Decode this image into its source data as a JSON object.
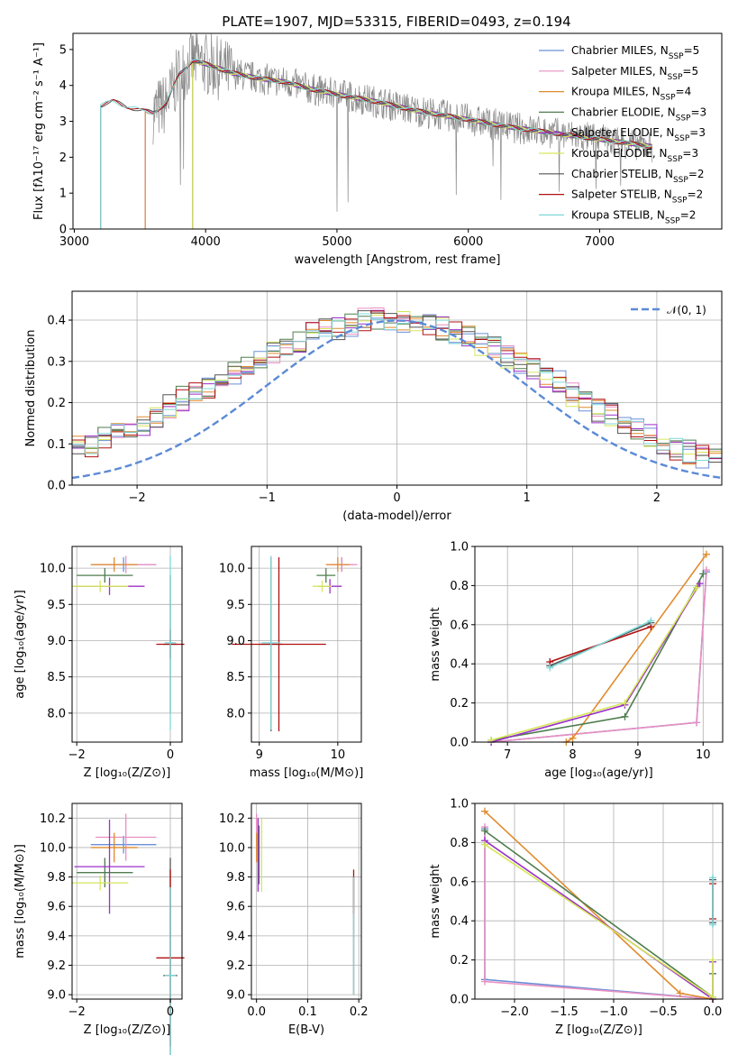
{
  "figure_title": "PLATE=1907, MJD=53315, FIBERID=0493, z=0.194",
  "palette": {
    "Chabrier MILES": "#6a8fd8",
    "Salpeter MILES": "#e98fc2",
    "Kroupa MILES": "#e08a2c",
    "Chabrier ELODIE": "#4f7d4f",
    "Salpeter ELODIE": "#9b30c8",
    "Kroupa ELODIE": "#d6e65a",
    "Chabrier STELIB": "#555555",
    "Salpeter STELIB": "#b01010",
    "Kroupa STELIB": "#7fd8d8",
    "data": "#888888",
    "normal": "#5b8ad6"
  },
  "chart_data": [
    {
      "id": "spectrum",
      "type": "line",
      "title": "PLATE=1907, MJD=53315, FIBERID=0493, z=0.194",
      "xlabel": "wavelength [Angstrom, rest frame]",
      "ylabel": "Flux [fλ10⁻¹⁷ erg cm⁻² s⁻¹ A⁻¹]",
      "xlim": [
        2990,
        7930
      ],
      "ylim": [
        0,
        5.45
      ],
      "xticks": [
        3000,
        4000,
        5000,
        6000,
        7000
      ],
      "yticks": [
        0,
        1,
        2,
        3,
        4,
        5
      ],
      "legend_loc": "upper right",
      "legend": [
        "Chabrier MILES, N_SSP=5",
        "Salpeter MILES, N_SSP=5",
        "Kroupa MILES, N_SSP=4",
        "Chabrier ELODIE, N_SSP=3",
        "Salpeter ELODIE, N_SSP=3",
        "Kroupa ELODIE, N_SSP=3",
        "Chabrier STELIB, N_SSP=2",
        "Salpeter STELIB, N_SSP=2",
        "Kroupa STELIB, N_SSP=2"
      ],
      "model_continuum": {
        "x": [
          3200,
          3300,
          3500,
          3600,
          3700,
          3800,
          3900,
          4000,
          4200,
          4400,
          4600,
          4800,
          5000,
          5300,
          5600,
          6000,
          6300,
          6600,
          6800,
          7000,
          7200,
          7400
        ],
        "y": [
          3.45,
          3.55,
          3.3,
          3.25,
          3.5,
          4.3,
          4.7,
          4.6,
          4.35,
          4.2,
          4.1,
          3.9,
          3.75,
          3.55,
          3.3,
          3.05,
          2.85,
          2.7,
          2.6,
          2.5,
          2.4,
          2.3
        ]
      },
      "model_starts": {
        "Chabrier MILES": 3540,
        "Salpeter MILES": 3540,
        "Kroupa MILES": 3540,
        "Chabrier ELODIE": 3900,
        "Salpeter ELODIE": 3900,
        "Kroupa ELODIE": 3900,
        "Chabrier STELIB": 3200,
        "Salpeter STELIB": 3200,
        "Kroupa STELIB": 3200
      },
      "data_range": [
        3600,
        7400
      ]
    },
    {
      "id": "residuals",
      "type": "step",
      "xlabel": "(data-model)/error",
      "ylabel": "Normed distribution",
      "xlim": [
        -2.5,
        2.5
      ],
      "ylim": [
        0,
        0.47
      ],
      "xticks": [
        -2,
        -1,
        0,
        1,
        2
      ],
      "yticks": [
        0.0,
        0.1,
        0.2,
        0.3,
        0.4
      ],
      "bin_width": 0.1,
      "legend": "𝒩(0, 1)",
      "legend_loc": "upper right",
      "base_histogram": [
        0.04,
        0.03,
        0.05,
        0.06,
        0.08,
        0.1,
        0.09,
        0.11,
        0.12,
        0.13,
        0.15,
        0.17,
        0.19,
        0.21,
        0.22,
        0.24,
        0.25,
        0.27,
        0.29,
        0.31,
        0.32,
        0.34,
        0.35,
        0.37,
        0.38,
        0.38,
        0.39,
        0.4,
        0.4,
        0.39,
        0.4,
        0.4,
        0.39,
        0.38,
        0.37,
        0.36,
        0.34,
        0.33,
        0.31,
        0.3,
        0.28,
        0.26,
        0.25,
        0.22,
        0.2,
        0.18,
        0.17,
        0.15,
        0.13,
        0.12,
        0.1,
        0.09,
        0.08,
        0.07,
        0.06,
        0.06,
        0.05,
        0.05,
        0.04,
        0.04
      ]
    },
    {
      "id": "age_vs_Z",
      "type": "errorbar",
      "xlabel": "Z [log₁₀(Z/Z⊙)]",
      "ylabel": "age  [log₁₀(age/yr)]",
      "xlim": [
        -2.1,
        0.25
      ],
      "ylim": [
        7.6,
        10.3
      ],
      "xticks": [
        -2,
        0
      ],
      "yticks": [
        8.0,
        8.5,
        9.0,
        9.5,
        10.0
      ],
      "points": [
        {
          "m": "Chabrier MILES",
          "x": -1.0,
          "y": 10.05,
          "xerr": 0.7,
          "yerr": 0.1
        },
        {
          "m": "Salpeter MILES",
          "x": -0.95,
          "y": 10.05,
          "xerr": 0.65,
          "yerr": 0.12
        },
        {
          "m": "Kroupa MILES",
          "x": -1.2,
          "y": 10.05,
          "xerr": 0.5,
          "yerr": 0.1
        },
        {
          "m": "Chabrier ELODIE",
          "x": -1.4,
          "y": 9.9,
          "xerr": 0.6,
          "yerr": 0.1
        },
        {
          "m": "Salpeter ELODIE",
          "x": -1.3,
          "y": 9.75,
          "xerr": 0.75,
          "yerr": 0.12
        },
        {
          "m": "Kroupa ELODIE",
          "x": -1.5,
          "y": 9.75,
          "xerr": 0.6,
          "yerr": 0.08
        },
        {
          "m": "Chabrier STELIB",
          "x": 0.0,
          "y": 8.95,
          "xerr": 0.15,
          "yerr": 0.95
        },
        {
          "m": "Salpeter STELIB",
          "x": 0.0,
          "y": 8.95,
          "xerr": 0.3,
          "yerr": 0.2
        },
        {
          "m": "Kroupa STELIB",
          "x": 0.0,
          "y": 8.97,
          "xerr": 0.12,
          "yerr": 1.2
        }
      ]
    },
    {
      "id": "age_vs_mass",
      "type": "errorbar",
      "xlabel": "mass [log₁₀(M/M⊙)]",
      "ylabel": "",
      "xlim": [
        8.9,
        10.3
      ],
      "ylim": [
        7.6,
        10.3
      ],
      "xticks": [
        9,
        10
      ],
      "yticks": [
        8.0,
        8.5,
        9.0,
        9.5,
        10.0
      ],
      "points": [
        {
          "m": "Chabrier MILES",
          "x": 10.05,
          "y": 10.05,
          "xerr": 0.15,
          "yerr": 0.1
        },
        {
          "m": "Salpeter MILES",
          "x": 10.05,
          "y": 10.05,
          "xerr": 0.2,
          "yerr": 0.1
        },
        {
          "m": "Kroupa MILES",
          "x": 10.0,
          "y": 10.05,
          "xerr": 0.15,
          "yerr": 0.1
        },
        {
          "m": "Chabrier ELODIE",
          "x": 9.85,
          "y": 9.9,
          "xerr": 0.12,
          "yerr": 0.1
        },
        {
          "m": "Salpeter ELODIE",
          "x": 9.9,
          "y": 9.75,
          "xerr": 0.15,
          "yerr": 0.1
        },
        {
          "m": "Kroupa ELODIE",
          "x": 9.8,
          "y": 9.75,
          "xerr": 0.12,
          "yerr": 0.08
        },
        {
          "m": "Chabrier STELIB",
          "x": 9.15,
          "y": 8.95,
          "xerr": 0.15,
          "yerr": 1.2
        },
        {
          "m": "Salpeter STELIB",
          "x": 9.25,
          "y": 8.95,
          "xerr": 0.6,
          "yerr": 1.2
        },
        {
          "m": "Kroupa STELIB",
          "x": 9.15,
          "y": 8.97,
          "xerr": 0.12,
          "yerr": 1.2
        }
      ]
    },
    {
      "id": "weight_vs_age",
      "type": "line",
      "xlabel": "age  [log₁₀(age/yr)]",
      "ylabel": "mass weight",
      "xlim": [
        6.5,
        10.3
      ],
      "ylim": [
        0,
        1.0
      ],
      "xticks": [
        7,
        8,
        9,
        10
      ],
      "yticks": [
        0.0,
        0.2,
        0.4,
        0.6,
        0.8,
        1.0
      ],
      "series": [
        {
          "m": "Chabrier MILES",
          "x": [
            10.05,
            9.9,
            6.75
          ],
          "y": [
            0.87,
            0.1,
            0.0
          ]
        },
        {
          "m": "Salpeter MILES",
          "x": [
            10.05,
            9.9,
            6.75
          ],
          "y": [
            0.88,
            0.1,
            0.0
          ]
        },
        {
          "m": "Kroupa MILES",
          "x": [
            10.05,
            8.0,
            7.9
          ],
          "y": [
            0.96,
            0.02,
            0.0
          ]
        },
        {
          "m": "Chabrier ELODIE",
          "x": [
            10.0,
            8.8,
            6.75
          ],
          "y": [
            0.86,
            0.13,
            0.01
          ]
        },
        {
          "m": "Salpeter ELODIE",
          "x": [
            9.95,
            8.8,
            6.75
          ],
          "y": [
            0.81,
            0.19,
            0.0
          ]
        },
        {
          "m": "Kroupa ELODIE",
          "x": [
            9.9,
            8.8,
            6.75
          ],
          "y": [
            0.79,
            0.2,
            0.01
          ]
        },
        {
          "m": "Chabrier STELIB",
          "x": [
            9.2,
            7.65
          ],
          "y": [
            0.61,
            0.39
          ]
        },
        {
          "m": "Salpeter STELIB",
          "x": [
            9.2,
            7.65
          ],
          "y": [
            0.59,
            0.41
          ]
        },
        {
          "m": "Kroupa STELIB",
          "x": [
            9.2,
            7.65
          ],
          "y": [
            0.62,
            0.38
          ]
        }
      ]
    },
    {
      "id": "mass_vs_Z",
      "type": "errorbar",
      "xlabel": "Z [log₁₀(Z/Z⊙)]",
      "ylabel": "mass [log₁₀(M/M⊙)]",
      "xlim": [
        -2.1,
        0.25
      ],
      "ylim": [
        8.97,
        10.3
      ],
      "xticks": [
        -2,
        0
      ],
      "yticks": [
        9.0,
        9.2,
        9.4,
        9.6,
        9.8,
        10.0,
        10.2
      ],
      "points": [
        {
          "m": "Chabrier MILES",
          "x": -1.0,
          "y": 10.02,
          "xerr": 0.7,
          "yerr": 0.06
        },
        {
          "m": "Salpeter MILES",
          "x": -0.95,
          "y": 10.07,
          "xerr": 0.65,
          "yerr": 0.16
        },
        {
          "m": "Kroupa MILES",
          "x": -1.2,
          "y": 10.0,
          "xerr": 0.5,
          "yerr": 0.1
        },
        {
          "m": "Chabrier ELODIE",
          "x": -1.4,
          "y": 9.83,
          "xerr": 0.6,
          "yerr": 0.1
        },
        {
          "m": "Salpeter ELODIE",
          "x": -1.3,
          "y": 9.87,
          "xerr": 0.75,
          "yerr": 0.32
        },
        {
          "m": "Kroupa ELODIE",
          "x": -1.5,
          "y": 9.76,
          "xerr": 0.6,
          "yerr": 0.05
        },
        {
          "m": "Chabrier STELIB",
          "x": 0.0,
          "y": 9.13,
          "xerr": 0.15,
          "yerr": 0.8
        },
        {
          "m": "Salpeter STELIB",
          "x": 0.0,
          "y": 9.25,
          "xerr": 0.3,
          "yerr": 0.6
        },
        {
          "m": "Kroupa STELIB",
          "x": 0.0,
          "y": 9.13,
          "xerr": 0.12,
          "yerr": 0.6
        }
      ]
    },
    {
      "id": "mass_vs_ebv",
      "type": "errorbar",
      "xlabel": "E(B-V)",
      "ylabel": "",
      "xlim": [
        -0.01,
        0.205
      ],
      "ylim": [
        8.97,
        10.3
      ],
      "xticks": [
        0.0,
        0.1,
        0.2
      ],
      "yticks": [
        9.0,
        9.2,
        9.4,
        9.6,
        9.8,
        10.0,
        10.2
      ],
      "points": [
        {
          "m": "Chabrier MILES",
          "x": 0.0,
          "y": 10.02,
          "xerr": 0.0,
          "yerr": 0.06
        },
        {
          "m": "Salpeter MILES",
          "x": 0.0,
          "y": 10.07,
          "xerr": 0.0,
          "yerr": 0.16
        },
        {
          "m": "Kroupa MILES",
          "x": 0.0,
          "y": 10.0,
          "xerr": 0.0,
          "yerr": 0.1
        },
        {
          "m": "Chabrier ELODIE",
          "x": 0.005,
          "y": 9.95,
          "xerr": 0.0,
          "yerr": 0.2
        },
        {
          "m": "Salpeter ELODIE",
          "x": 0.003,
          "y": 9.95,
          "xerr": 0.0,
          "yerr": 0.25
        },
        {
          "m": "Kroupa ELODIE",
          "x": 0.01,
          "y": 9.95,
          "xerr": 0.0,
          "yerr": 0.25
        },
        {
          "m": "Chabrier STELIB",
          "x": 0.19,
          "y": 9.4,
          "xerr": 0.0,
          "yerr": 0.4
        },
        {
          "m": "Salpeter STELIB",
          "x": 0.19,
          "y": 9.7,
          "xerr": 0.0,
          "yerr": 0.15
        },
        {
          "m": "Kroupa STELIB",
          "x": 0.19,
          "y": 9.4,
          "xerr": 0.0,
          "yerr": 0.4
        }
      ]
    },
    {
      "id": "weight_vs_Z",
      "type": "line",
      "xlabel": "Z [log₁₀(Z/Z⊙)]",
      "ylabel": "mass weight",
      "xlim": [
        -2.4,
        0.1
      ],
      "ylim": [
        0,
        1.0
      ],
      "xticks": [
        -2.0,
        -1.5,
        -1.0,
        -0.5,
        0.0
      ],
      "yticks": [
        0.0,
        0.2,
        0.4,
        0.6,
        0.8,
        1.0
      ],
      "series": [
        {
          "m": "Chabrier MILES",
          "x": [
            -2.3,
            -2.3,
            0.0
          ],
          "y": [
            0.87,
            0.1,
            0.0
          ]
        },
        {
          "m": "Salpeter MILES",
          "x": [
            -2.3,
            -2.3,
            0.0
          ],
          "y": [
            0.88,
            0.09,
            0.0
          ]
        },
        {
          "m": "Kroupa MILES",
          "x": [
            -2.3,
            -0.33,
            0.0
          ],
          "y": [
            0.96,
            0.03,
            0.0
          ]
        },
        {
          "m": "Chabrier ELODIE",
          "x": [
            -2.3,
            0.0,
            0.0
          ],
          "y": [
            0.86,
            0.01,
            0.13
          ]
        },
        {
          "m": "Salpeter ELODIE",
          "x": [
            -2.3,
            0.0,
            0.0
          ],
          "y": [
            0.81,
            0.0,
            0.19
          ]
        },
        {
          "m": "Kroupa ELODIE",
          "x": [
            -2.3,
            0.0,
            0.0
          ],
          "y": [
            0.79,
            0.01,
            0.2
          ]
        },
        {
          "m": "Chabrier STELIB",
          "x": [
            0.0,
            0.0
          ],
          "y": [
            0.61,
            0.39
          ]
        },
        {
          "m": "Salpeter STELIB",
          "x": [
            0.0,
            0.0
          ],
          "y": [
            0.59,
            0.41
          ]
        },
        {
          "m": "Kroupa STELIB",
          "x": [
            0.0,
            0.0
          ],
          "y": [
            0.62,
            0.38
          ]
        }
      ]
    }
  ]
}
